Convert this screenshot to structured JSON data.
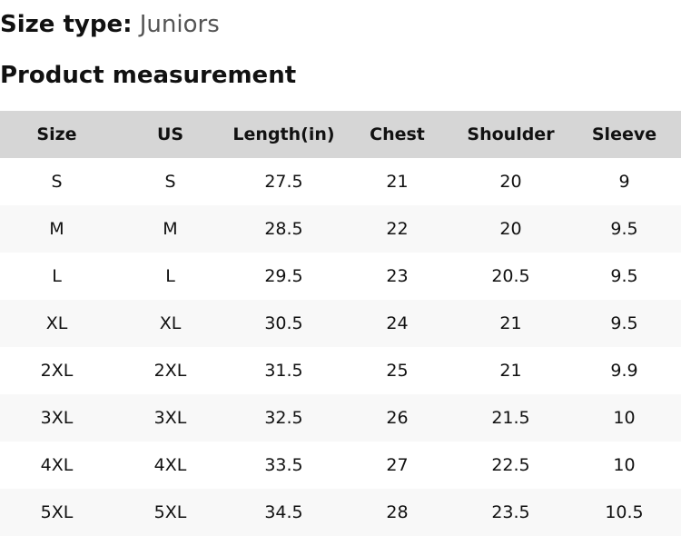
{
  "size_type": {
    "label": "Size type:",
    "value": "Juniors"
  },
  "title": "Product measurement",
  "table": {
    "headers": [
      "Size",
      "US",
      "Length(in)",
      "Chest",
      "Shoulder",
      "Sleeve"
    ],
    "rows": [
      [
        "S",
        "S",
        "27.5",
        "21",
        "20",
        "9"
      ],
      [
        "M",
        "M",
        "28.5",
        "22",
        "20",
        "9.5"
      ],
      [
        "L",
        "L",
        "29.5",
        "23",
        "20.5",
        "9.5"
      ],
      [
        "XL",
        "XL",
        "30.5",
        "24",
        "21",
        "9.5"
      ],
      [
        "2XL",
        "2XL",
        "31.5",
        "25",
        "21",
        "9.9"
      ],
      [
        "3XL",
        "3XL",
        "32.5",
        "26",
        "21.5",
        "10"
      ],
      [
        "4XL",
        "4XL",
        "33.5",
        "27",
        "22.5",
        "10"
      ],
      [
        "5XL",
        "5XL",
        "34.5",
        "28",
        "23.5",
        "10.5"
      ]
    ]
  }
}
